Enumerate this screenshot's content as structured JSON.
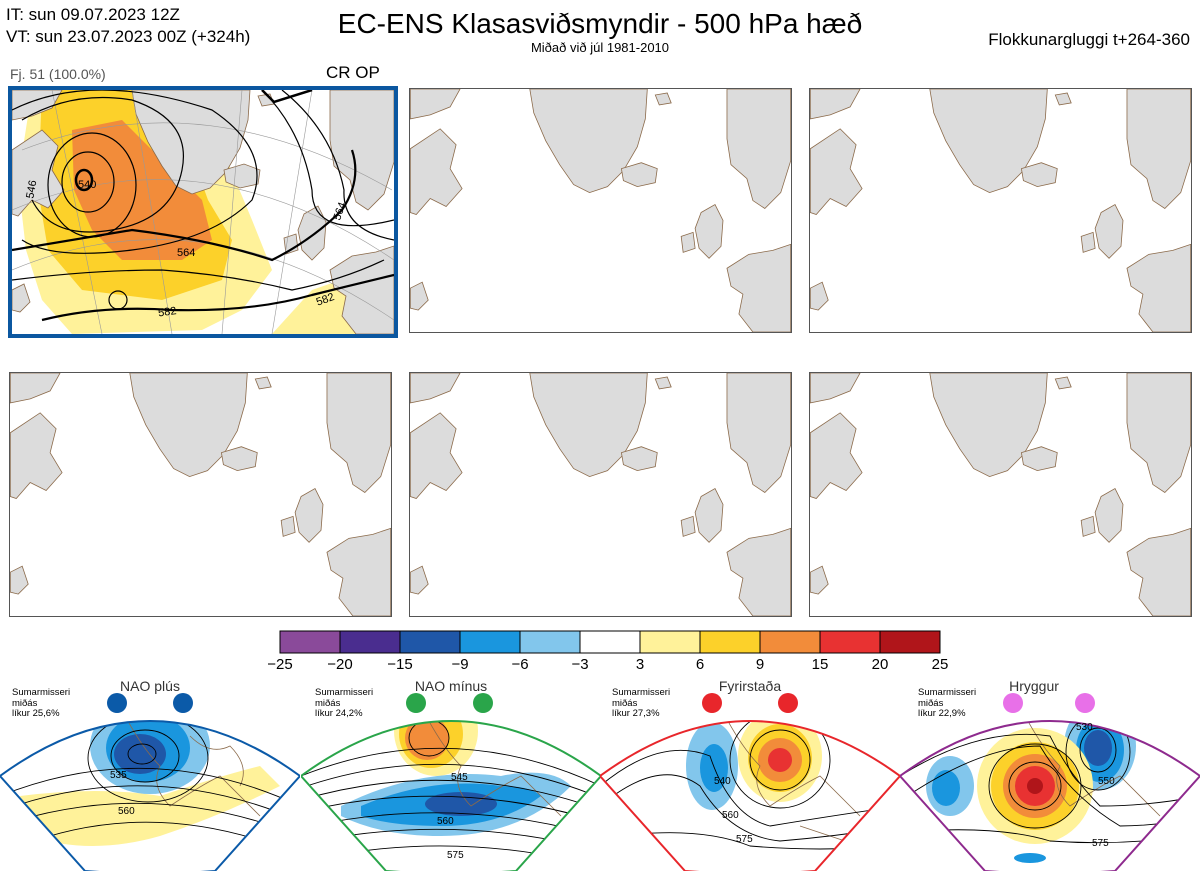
{
  "header": {
    "it_line": "IT: sun 09.07.2023 12Z",
    "vt_line": "VT: sun 23.07.2023 00Z  (+324h)",
    "title": "EC-ENS Klasasviðsmyndir - 500 hPa hæð",
    "subtitle": "Miðað við júl 1981-2010",
    "window": "Flokkunargluggi t+264-360"
  },
  "cluster": {
    "label": "Fj. 51 (100.0%)",
    "tag": "CR OP",
    "contour_labels": [
      "540",
      "546",
      "564",
      "582",
      "564",
      "582"
    ]
  },
  "colorbar": {
    "colors": [
      "#8a4a9a",
      "#4a2d8f",
      "#1f57a8",
      "#1a96de",
      "#82c6ec",
      "#ffffff",
      "#fff29a",
      "#fcd12a",
      "#f28c3a",
      "#e83232",
      "#b0151a"
    ],
    "labels": [
      "−25",
      "−20",
      "−15",
      "−9",
      "−6",
      "−3",
      "3",
      "6",
      "9",
      "15",
      "20",
      "25"
    ]
  },
  "regimes": [
    {
      "name": "NAO plús",
      "season": "Sumarmisseri",
      "stat": "miðás",
      "likur": "líkur 25,6%",
      "color": "#0b5aa8",
      "contours": [
        "535",
        "560"
      ]
    },
    {
      "name": "NAO mínus",
      "season": "Sumarmisseri",
      "stat": "miðás",
      "likur": "líkur 24,2%",
      "color": "#2aa54a",
      "contours": [
        "545",
        "560",
        "575"
      ]
    },
    {
      "name": "Fyrirstaða",
      "season": "Sumarmisseri",
      "stat": "miðás",
      "likur": "líkur 27,3%",
      "color": "#e8262b",
      "contours": [
        "540",
        "560",
        "575"
      ]
    },
    {
      "name": "Hryggur",
      "season": "Sumarmisseri",
      "stat": "miðás",
      "likur": "líkur 22,9%",
      "color": "#8e2a8e",
      "contours": [
        "530",
        "550",
        "575"
      ]
    }
  ]
}
